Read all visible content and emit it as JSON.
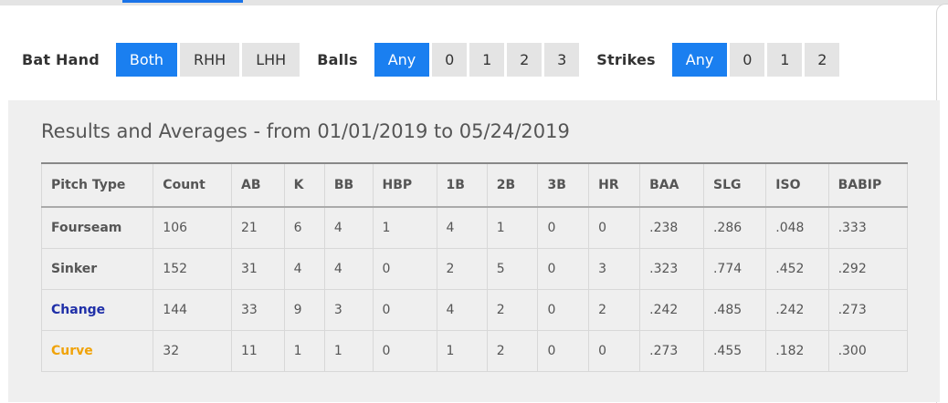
{
  "filters": {
    "bat_hand": {
      "label": "Bat Hand",
      "options": [
        "Both",
        "RHH",
        "LHH"
      ],
      "selected": "Both"
    },
    "balls": {
      "label": "Balls",
      "options": [
        "Any",
        "0",
        "1",
        "2",
        "3"
      ],
      "selected": "Any"
    },
    "strikes": {
      "label": "Strikes",
      "options": [
        "Any",
        "0",
        "1",
        "2"
      ],
      "selected": "Any"
    }
  },
  "panel": {
    "title": "Results and Averages - from 01/01/2019 to 05/24/2019"
  },
  "table": {
    "headers": [
      "Pitch Type",
      "Count",
      "AB",
      "K",
      "BB",
      "HBP",
      "1B",
      "2B",
      "3B",
      "HR",
      "BAA",
      "SLG",
      "ISO",
      "BABIP"
    ],
    "rows": [
      {
        "pitch_type": "Fourseam",
        "color": "#555555",
        "cells": [
          "106",
          "21",
          "6",
          "4",
          "1",
          "4",
          "1",
          "0",
          "0",
          ".238",
          ".286",
          ".048",
          ".333"
        ]
      },
      {
        "pitch_type": "Sinker",
        "color": "#555555",
        "cells": [
          "152",
          "31",
          "4",
          "4",
          "0",
          "2",
          "5",
          "0",
          "3",
          ".323",
          ".774",
          ".452",
          ".292"
        ]
      },
      {
        "pitch_type": "Change",
        "color": "#1f2fa8",
        "cells": [
          "144",
          "33",
          "9",
          "3",
          "0",
          "4",
          "2",
          "0",
          "2",
          ".242",
          ".485",
          ".242",
          ".273"
        ]
      },
      {
        "pitch_type": "Curve",
        "color": "#f0a30a",
        "cells": [
          "32",
          "11",
          "1",
          "1",
          "0",
          "1",
          "2",
          "0",
          "0",
          ".273",
          ".455",
          ".182",
          ".300"
        ]
      }
    ]
  },
  "colors": {
    "accent": "#1a7ff0",
    "button_bg": "#e4e4e4",
    "panel_bg": "#efefef"
  }
}
